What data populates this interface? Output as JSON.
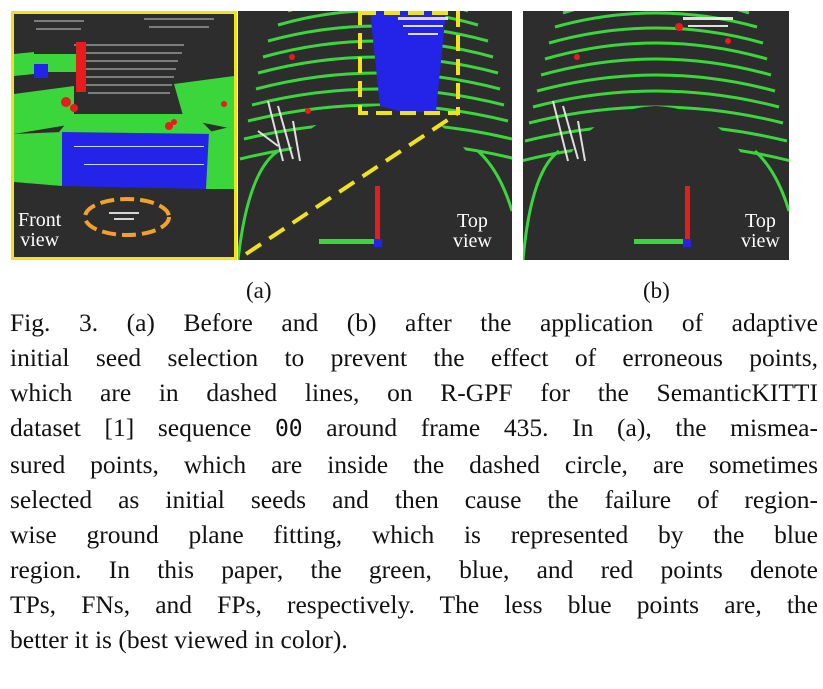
{
  "figure": {
    "panels": [
      {
        "id": "front",
        "view_label": [
          "Front",
          "view"
        ]
      },
      {
        "id": "top-a",
        "view_label": [
          "Top",
          "view"
        ]
      },
      {
        "id": "top-b",
        "view_label": [
          "Top",
          "view"
        ]
      }
    ],
    "sublabels": [
      "(a)",
      "(b)"
    ],
    "colors": {
      "tp": "#3bd63b",
      "fn": "#2424e8",
      "fp": "#e81c1c",
      "highlight": "#f1e21a",
      "circle": "#f2a12a",
      "background": "#2d2d2d"
    }
  },
  "caption": {
    "lines": [
      "Fig. 3. (a) Before and (b) after the application of adaptive",
      "initial seed selection to prevent the effect of erroneous points,",
      "which are in dashed lines, on R-GPF for the SemanticKITTI",
      [
        "dataset [1] sequence ",
        "00",
        " around frame 435. In (a), the mismea-"
      ],
      "sured points, which are inside the dashed circle, are sometimes",
      "selected as initial seeds and then cause the failure of region-",
      "wise ground plane fitting, which is represented by the blue",
      "region. In this paper, the green, blue, and red points denote",
      "TPs, FNs, and FPs, respectively. The less blue points are, the",
      "better it is (best viewed in color)."
    ]
  }
}
